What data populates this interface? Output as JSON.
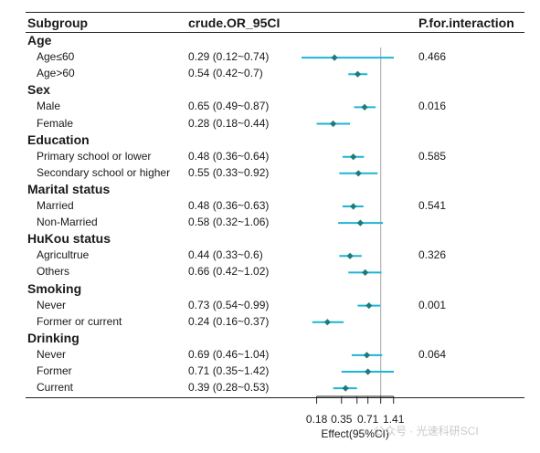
{
  "headers": {
    "subgroup": "Subgroup",
    "or": "crude.OR_95CI",
    "pinteraction": "P.for.interaction"
  },
  "watermark": "公众号 · 光速科研SCI",
  "chart_data": {
    "type": "forest",
    "xlabel": "Effect(95%CI)",
    "xscale": "log",
    "xlim": [
      0.12,
      1.42
    ],
    "xticks": [
      0.18,
      0.35,
      0.53,
      0.71,
      1.0,
      1.41
    ],
    "xtick_labels": [
      "0.18",
      "0.35",
      "",
      "0.71",
      "",
      "1.41"
    ],
    "reference_line": 1,
    "colors": {
      "ci": "#1cb5d6",
      "point": "#1f7a7a",
      "reference": "#b3b3b3",
      "axis": "#222222"
    },
    "groups": [
      {
        "name": "Age",
        "p_interaction": "0.466",
        "rows": [
          {
            "label": "Age≤60",
            "or_text": "0.29 (0.12~0.74)",
            "or": 0.29,
            "lower": 0.12,
            "upper": 0.74,
            "ci_display_upper": 1.42
          },
          {
            "label": "Age>60",
            "or_text": "0.54 (0.42~0.7)",
            "or": 0.54,
            "lower": 0.42,
            "upper": 0.7
          }
        ]
      },
      {
        "name": "Sex",
        "p_interaction": "0.016",
        "rows": [
          {
            "label": "Male",
            "or_text": "0.65 (0.49~0.87)",
            "or": 0.65,
            "lower": 0.49,
            "upper": 0.87
          },
          {
            "label": "Female",
            "or_text": "0.28 (0.18~0.44)",
            "or": 0.28,
            "lower": 0.18,
            "upper": 0.44
          }
        ]
      },
      {
        "name": "Education",
        "p_interaction": "0.585",
        "rows": [
          {
            "label": "Primary school or lower",
            "or_text": "0.48 (0.36~0.64)",
            "or": 0.48,
            "lower": 0.36,
            "upper": 0.64
          },
          {
            "label": "Secondary school or higher",
            "or_text": "0.55 (0.33~0.92)",
            "or": 0.55,
            "lower": 0.33,
            "upper": 0.92
          }
        ]
      },
      {
        "name": "Marital status",
        "p_interaction": "0.541",
        "rows": [
          {
            "label": "Married",
            "or_text": "0.48 (0.36~0.63)",
            "or": 0.48,
            "lower": 0.36,
            "upper": 0.63
          },
          {
            "label": "Non-Married",
            "or_text": "0.58 (0.32~1.06)",
            "or": 0.58,
            "lower": 0.32,
            "upper": 1.06
          }
        ]
      },
      {
        "name": "HuKou status",
        "p_interaction": "0.326",
        "rows": [
          {
            "label": "Agricultrue",
            "or_text": "0.44 (0.33~0.6)",
            "or": 0.44,
            "lower": 0.33,
            "upper": 0.6
          },
          {
            "label": "Others",
            "or_text": "0.66 (0.42~1.02)",
            "or": 0.66,
            "lower": 0.42,
            "upper": 1.02
          }
        ]
      },
      {
        "name": "Smoking",
        "p_interaction": "0.001",
        "rows": [
          {
            "label": "Never",
            "or_text": "0.73 (0.54~0.99)",
            "or": 0.73,
            "lower": 0.54,
            "upper": 0.99
          },
          {
            "label": "Former or current",
            "or_text": "0.24 (0.16~0.37)",
            "or": 0.24,
            "lower": 0.16,
            "upper": 0.37
          }
        ]
      },
      {
        "name": "Drinking",
        "p_interaction": "0.064",
        "rows": [
          {
            "label": "Never",
            "or_text": "0.69 (0.46~1.04)",
            "or": 0.69,
            "lower": 0.46,
            "upper": 1.04
          },
          {
            "label": "Former",
            "or_text": "0.71 (0.35~1.42)",
            "or": 0.71,
            "lower": 0.35,
            "upper": 1.42
          },
          {
            "label": "Current",
            "or_text": "0.39 (0.28~0.53)",
            "or": 0.39,
            "lower": 0.28,
            "upper": 0.53
          }
        ]
      }
    ]
  }
}
